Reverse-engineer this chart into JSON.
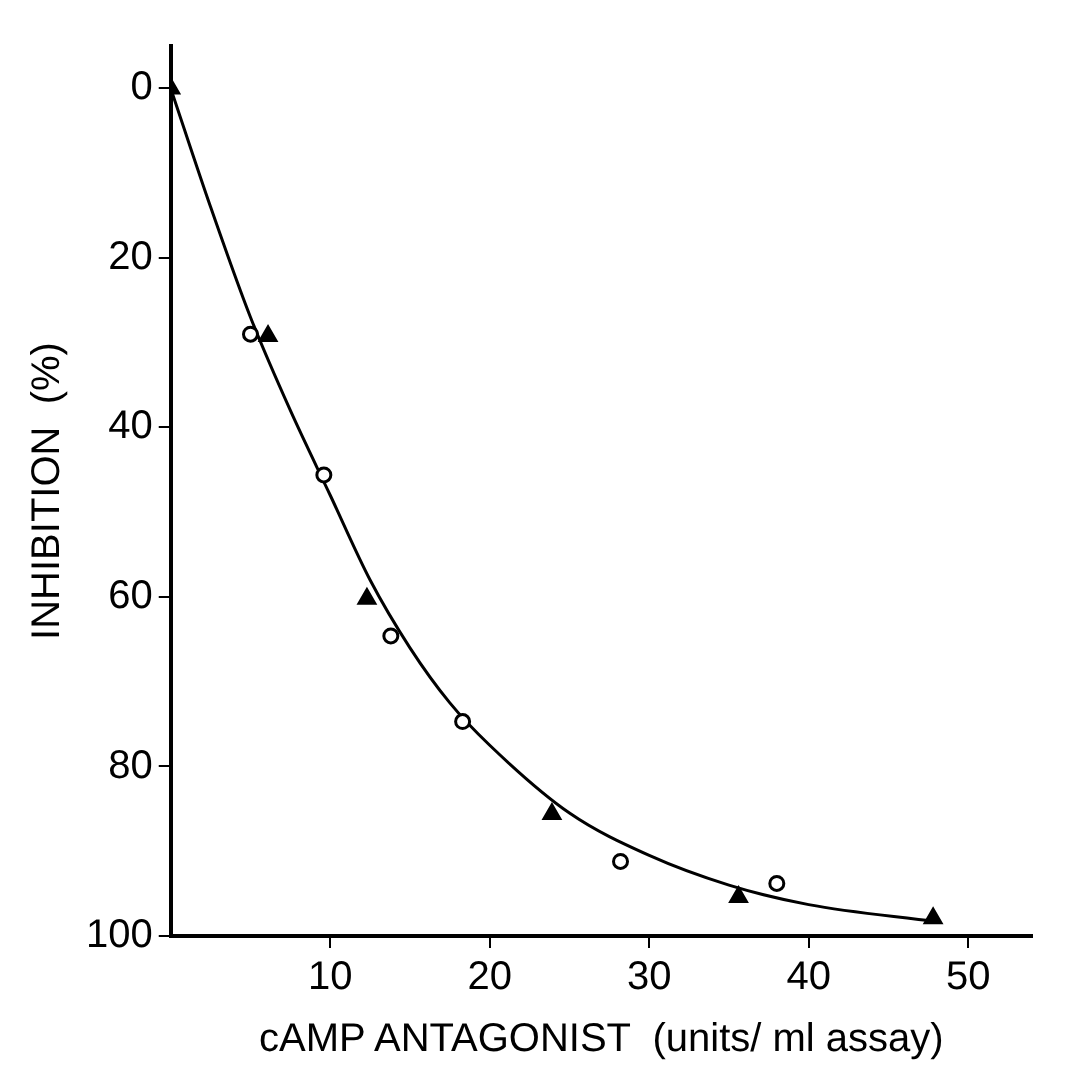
{
  "chart_data": {
    "type": "scatter",
    "xlabel": "cAMP ANTAGONIST  (units/ ml assay)",
    "ylabel": "INHIBITION  (%)",
    "xlim": [
      0,
      54
    ],
    "xticks": [
      10,
      20,
      30,
      40,
      50
    ],
    "ylim": [
      100,
      -5
    ],
    "yticks": [
      0,
      20,
      40,
      60,
      80,
      100
    ],
    "legend": false,
    "series": [
      {
        "type": "line",
        "color": "#000000",
        "marker": "none",
        "line_style": "solid",
        "x": [
          0,
          2.5,
          5,
          7.5,
          10,
          12.5,
          15,
          17.5,
          20,
          25,
          30,
          35,
          40,
          48
        ],
        "values": [
          0,
          14,
          27,
          38,
          48,
          58,
          66,
          72.5,
          77.5,
          85.5,
          90.5,
          94,
          96.3,
          98.3
        ]
      },
      {
        "type": "scatter",
        "color": "#000000",
        "marker": "circle",
        "x": [
          5.0,
          9.6,
          13.8,
          18.3,
          28.2,
          38.0
        ],
        "values": [
          29,
          45.6,
          64.6,
          74.7,
          91.2,
          93.8
        ]
      },
      {
        "type": "scatter",
        "color": "#000000",
        "marker": "triangle",
        "x": [
          0,
          6.1,
          12.3,
          23.9,
          35.6,
          47.8
        ],
        "values": [
          0,
          29.2,
          60.2,
          85.6,
          95.4,
          97.9
        ]
      }
    ]
  }
}
